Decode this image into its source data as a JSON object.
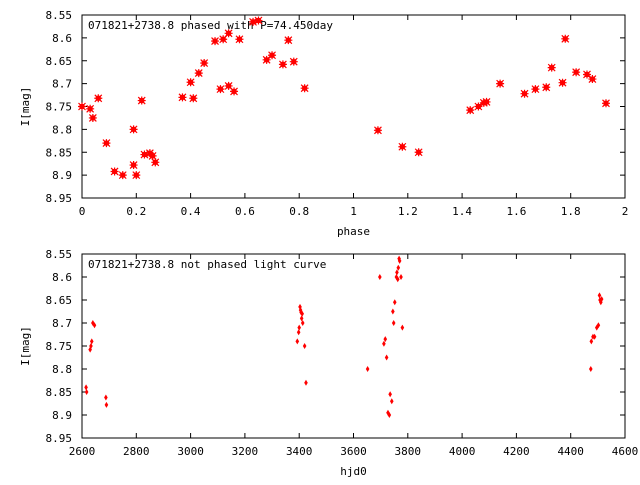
{
  "chart_data": [
    {
      "type": "scatter",
      "title": "071821+2738.8 phased with P=74.450day",
      "xlabel": "phase",
      "ylabel": "I[mag]",
      "xlim": [
        0,
        2
      ],
      "ylim": [
        8.55,
        8.95
      ],
      "y_inverted": true,
      "xticks": [
        "0",
        "0.2",
        "0.4",
        "0.6",
        "0.8",
        "1",
        "1.2",
        "1.4",
        "1.6",
        "1.8",
        "2"
      ],
      "xtick_values": [
        0,
        0.2,
        0.4,
        0.6,
        0.8,
        1.0,
        1.2,
        1.4,
        1.6,
        1.8,
        2.0
      ],
      "yticks": [
        "8.55",
        "8.6",
        "8.65",
        "8.7",
        "8.75",
        "8.8",
        "8.85",
        "8.9",
        "8.95"
      ],
      "ytick_values": [
        8.55,
        8.6,
        8.65,
        8.7,
        8.75,
        8.8,
        8.85,
        8.9,
        8.95
      ],
      "marker_color": "#ff0000",
      "grid": false,
      "x": [
        0.0,
        0.03,
        0.04,
        0.06,
        0.09,
        0.12,
        0.15,
        0.19,
        0.19,
        0.2,
        0.22,
        0.23,
        0.25,
        0.26,
        0.27,
        0.37,
        0.4,
        0.41,
        0.43,
        0.45,
        0.49,
        0.51,
        0.52,
        0.54,
        0.54,
        0.56,
        0.58,
        0.63,
        0.65,
        0.68,
        0.7,
        0.74,
        0.76,
        0.78,
        0.82,
        1.09,
        1.18,
        1.24,
        1.43,
        1.46,
        1.48,
        1.49,
        1.54,
        1.63,
        1.67,
        1.71,
        1.73,
        1.77,
        1.78,
        1.82,
        1.86,
        1.88,
        1.93
      ],
      "y": [
        8.75,
        8.755,
        8.775,
        8.732,
        8.83,
        8.892,
        8.9,
        8.8,
        8.878,
        8.9,
        8.737,
        8.855,
        8.852,
        8.858,
        8.872,
        8.73,
        8.697,
        8.732,
        8.677,
        8.655,
        8.607,
        8.712,
        8.603,
        8.705,
        8.59,
        8.717,
        8.603,
        8.565,
        8.562,
        8.648,
        8.638,
        8.658,
        8.605,
        8.652,
        8.71,
        8.802,
        8.838,
        8.85,
        8.758,
        8.75,
        8.742,
        8.74,
        8.7,
        8.722,
        8.712,
        8.708,
        8.665,
        8.698,
        8.602,
        8.675,
        8.68,
        8.69,
        8.743
      ]
    },
    {
      "type": "scatter",
      "title": "071821+2738.8 not phased light curve",
      "xlabel": "hjd0",
      "ylabel": "I[mag]",
      "xlim": [
        2600,
        4600
      ],
      "ylim": [
        8.55,
        8.95
      ],
      "y_inverted": true,
      "xticks": [
        "2600",
        "2800",
        "3000",
        "3200",
        "3400",
        "3600",
        "3800",
        "4000",
        "4200",
        "4400",
        "4600"
      ],
      "xtick_values": [
        2600,
        2800,
        3000,
        3200,
        3400,
        3600,
        3800,
        4000,
        4200,
        4400,
        4600
      ],
      "yticks": [
        "8.55",
        "8.6",
        "8.65",
        "8.7",
        "8.75",
        "8.8",
        "8.85",
        "8.9",
        "8.95"
      ],
      "ytick_values": [
        8.55,
        8.6,
        8.65,
        8.7,
        8.75,
        8.8,
        8.85,
        8.9,
        8.95
      ],
      "marker_color": "#ff0000",
      "grid": false,
      "x": [
        2615,
        2617,
        2630,
        2633,
        2636,
        2640,
        2646,
        2688,
        2690,
        3393,
        3398,
        3400,
        3403,
        3405,
        3407,
        3409,
        3411,
        3413,
        3420,
        3425,
        3652,
        3697,
        3712,
        3717,
        3722,
        3727,
        3732,
        3735,
        3741,
        3745,
        3748,
        3752,
        3758,
        3760,
        3763,
        3765,
        3768,
        3770,
        3775,
        3780,
        4474,
        4476,
        4482,
        4488,
        4496,
        4502,
        4506,
        4508,
        4511,
        4514
      ],
      "y": [
        8.84,
        8.85,
        8.758,
        8.75,
        8.74,
        8.7,
        8.705,
        8.862,
        8.878,
        8.74,
        8.72,
        8.71,
        8.665,
        8.672,
        8.677,
        8.69,
        8.68,
        8.7,
        8.75,
        8.83,
        8.8,
        8.6,
        8.745,
        8.735,
        8.775,
        8.895,
        8.9,
        8.855,
        8.87,
        8.675,
        8.7,
        8.655,
        8.6,
        8.59,
        8.605,
        8.58,
        8.56,
        8.565,
        8.6,
        8.71,
        8.8,
        8.74,
        8.73,
        8.73,
        8.71,
        8.705,
        8.64,
        8.65,
        8.655,
        8.648
      ]
    }
  ]
}
